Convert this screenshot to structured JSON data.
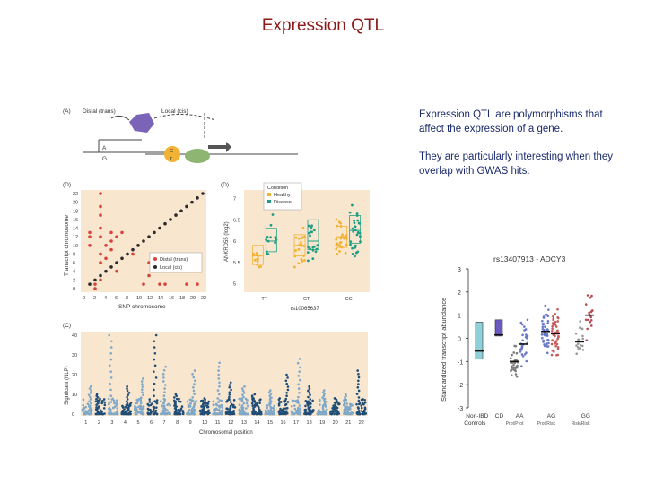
{
  "slide": {
    "title": "Expression QTL",
    "paragraphs": [
      "Expression QTL are polymorphisms that affect the expression of a gene.",
      "They are particularly interesting when they overlap with GWAS hits."
    ]
  },
  "panelA": {
    "label": "(A)",
    "distal": "Distal (trans)",
    "local": "Local (cis)",
    "allele_top": "A",
    "allele_bottom": "G",
    "circle_top": "C",
    "circle_bottom": "T"
  },
  "panelD": {
    "label": "(D)",
    "ylabel": "Transcript chromosome",
    "xlabel": "SNP chromosome",
    "legend": [
      "Distal (trans)",
      "Local (cis)"
    ]
  },
  "panelB": {
    "label": "(D)",
    "ylabel": "ANKRD55 (log2)",
    "xlabel": "rs10065637",
    "legend_title": "Condition",
    "legend": [
      "Healthy",
      "Disease"
    ]
  },
  "panelC": {
    "label": "(C)",
    "ylabel": "Signficant (NLP)",
    "xlabel": "Chromosomal position"
  },
  "panelE": {
    "title": "rs13407913 - ADCY3",
    "ylabel": "Standardized transcript abundance",
    "xlabels": [
      "Non-IBD\nControls",
      "CD",
      "AA",
      "AG",
      "GG"
    ],
    "sublabels": [
      "Prot/Prot",
      "Prot/Risk",
      "Risk/Risk"
    ]
  },
  "chart_data": [
    {
      "type": "scatter",
      "title": "",
      "xlabel": "SNP chromosome",
      "ylabel": "Transcript chromosome",
      "xticks": [
        0,
        2,
        4,
        6,
        8,
        10,
        12,
        14,
        16,
        18,
        20,
        22
      ],
      "yticks": [
        0,
        2,
        4,
        6,
        8,
        10,
        12,
        14,
        16,
        18,
        20,
        22
      ],
      "xlim": [
        0,
        22
      ],
      "ylim": [
        0,
        22
      ],
      "series": [
        {
          "name": "Local (cis)",
          "color": "#2b2b2b",
          "points": [
            [
              1,
              1
            ],
            [
              2,
              2
            ],
            [
              3,
              3
            ],
            [
              4,
              4
            ],
            [
              5,
              5
            ],
            [
              6,
              6
            ],
            [
              7,
              7
            ],
            [
              8,
              8
            ],
            [
              9,
              9
            ],
            [
              10,
              10
            ],
            [
              11,
              11
            ],
            [
              12,
              12
            ],
            [
              13,
              13
            ],
            [
              14,
              14
            ],
            [
              15,
              15
            ],
            [
              16,
              16
            ],
            [
              17,
              17
            ],
            [
              18,
              18
            ],
            [
              19,
              19
            ],
            [
              20,
              20
            ],
            [
              21,
              21
            ],
            [
              22,
              22
            ]
          ]
        },
        {
          "name": "Distal (trans)",
          "color": "#d9433b",
          "points": [
            [
              1,
              13
            ],
            [
              1,
              12
            ],
            [
              1,
              10
            ],
            [
              2,
              1
            ],
            [
              2,
              0
            ],
            [
              3,
              22
            ],
            [
              3,
              19
            ],
            [
              3,
              17
            ],
            [
              3,
              14
            ],
            [
              3,
              12
            ],
            [
              3,
              8
            ],
            [
              3,
              6
            ],
            [
              3,
              2
            ],
            [
              4,
              10
            ],
            [
              4,
              7
            ],
            [
              5,
              13
            ],
            [
              5,
              11
            ],
            [
              5,
              9
            ],
            [
              6,
              12
            ],
            [
              6,
              4
            ],
            [
              7,
              13
            ],
            [
              9,
              8
            ],
            [
              11,
              1
            ],
            [
              12,
              6
            ],
            [
              12,
              3
            ],
            [
              14,
              1
            ],
            [
              15,
              1
            ],
            [
              19,
              1
            ],
            [
              21,
              1
            ]
          ]
        }
      ]
    },
    {
      "type": "scatter",
      "xlabel": "rs10065637",
      "ylabel": "ANKRD55 (log2)",
      "categories": [
        "TT",
        "CT",
        "CC"
      ],
      "ylim": [
        4.8,
        7.2
      ],
      "yticks": [
        5,
        5.5,
        6,
        6.5,
        7
      ],
      "series": [
        {
          "name": "Healthy",
          "color": "#f2b233",
          "boxes": [
            {
              "cat": "TT",
              "q1": 5.45,
              "median": 5.65,
              "q3": 5.9
            },
            {
              "cat": "CT",
              "q1": 5.65,
              "median": 5.9,
              "q3": 6.15
            },
            {
              "cat": "CC",
              "q1": 5.85,
              "median": 6.1,
              "q3": 6.35
            }
          ]
        },
        {
          "name": "Disease",
          "color": "#1f9e84",
          "boxes": [
            {
              "cat": "TT",
              "q1": 5.75,
              "median": 6.0,
              "q3": 6.3
            },
            {
              "cat": "CT",
              "q1": 5.8,
              "median": 6.0,
              "q3": 6.5
            },
            {
              "cat": "CC",
              "q1": 5.95,
              "median": 6.25,
              "q3": 6.6
            }
          ]
        }
      ]
    },
    {
      "type": "scatter",
      "subtype": "manhattan",
      "xlabel": "Chromosomal position",
      "ylabel": "Signficant (NLP)",
      "categories": [
        "1",
        "2",
        "3",
        "4",
        "5",
        "6",
        "7",
        "8",
        "9",
        "10",
        "11",
        "12",
        "13",
        "14",
        "15",
        "16",
        "17",
        "18",
        "19",
        "20",
        "21",
        "22"
      ],
      "ylim": [
        0,
        40
      ],
      "yticks": [
        0,
        10,
        20,
        30,
        40
      ],
      "peaks": [
        14,
        10,
        40,
        14,
        18,
        40,
        24,
        10,
        22,
        8,
        26,
        16,
        14,
        10,
        12,
        20,
        28,
        14,
        12,
        8,
        10,
        22
      ],
      "colors": [
        "#7fa8c9",
        "#1f4e79"
      ]
    },
    {
      "type": "scatter",
      "title": "rs13407913 - ADCY3",
      "ylabel": "Standardized transcript abundance",
      "categories": [
        "Non-IBD Controls",
        "CD",
        "AA",
        "AG",
        "GG"
      ],
      "ylim": [
        -3,
        3
      ],
      "yticks": [
        -3,
        -2,
        -1,
        0,
        1,
        2,
        3
      ],
      "boxes": [
        {
          "cat": "Non-IBD Controls",
          "low": -0.9,
          "high": 0.7,
          "median": -0.55,
          "color": "#8ed1d9"
        },
        {
          "cat": "CD",
          "low": 0.1,
          "high": 0.8,
          "median": 0.15,
          "color": "#6a5ac2"
        }
      ],
      "means": [
        {
          "cat": "AA",
          "value": -1.0
        },
        {
          "cat": "AA",
          "value": -0.25
        },
        {
          "cat": "AG",
          "value": 0.3
        },
        {
          "cat": "AG",
          "value": 0.2
        },
        {
          "cat": "GG",
          "value": -0.15
        },
        {
          "cat": "GG",
          "value": 1.0
        }
      ]
    }
  ]
}
